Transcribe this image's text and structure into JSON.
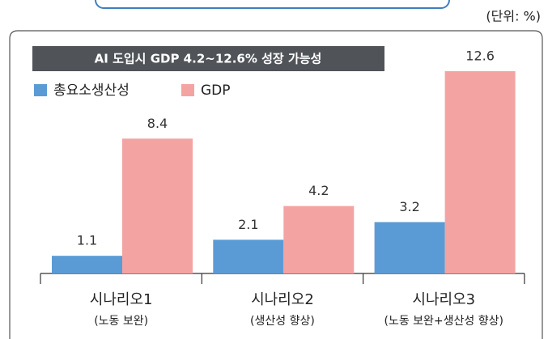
{
  "chart_data": {
    "type": "bar",
    "unit_note": "(단위: %)",
    "title": "AI 도입시 GDP 4.2~12.6% 성장 가능성",
    "categories": [
      "시나리오1",
      "시나리오2",
      "시나리오3"
    ],
    "category_notes": [
      "(노동 보완)",
      "(생산성 향상)",
      "(노동 보완+생산성 향상)"
    ],
    "series": [
      {
        "name": "총요소생산성",
        "color": "#5b9bd5",
        "values": [
          1.1,
          2.1,
          3.2
        ]
      },
      {
        "name": "GDP",
        "color": "#f4a3a3",
        "values": [
          8.4,
          4.2,
          12.6
        ]
      }
    ]
  }
}
